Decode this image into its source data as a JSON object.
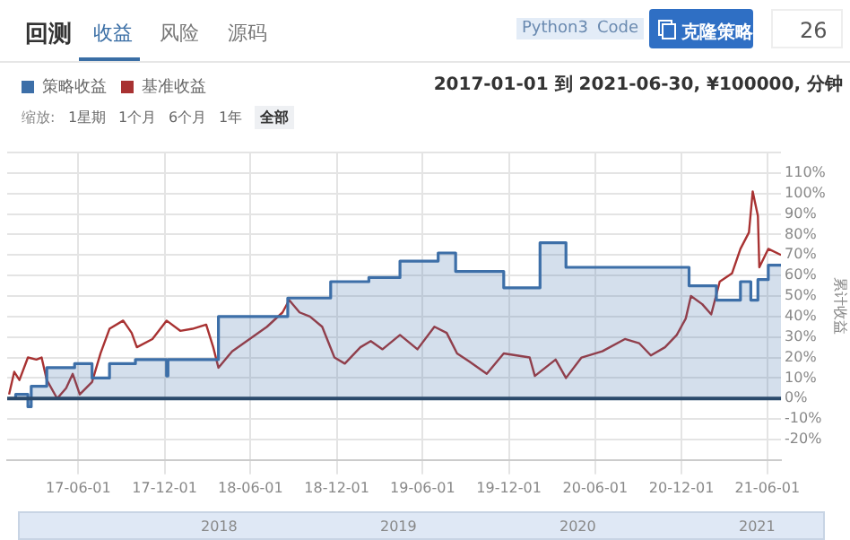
{
  "chart_data": {
    "type": "line",
    "subtitle": "2017-01-01 到 2021-06-30, ¥100000, 分钟",
    "ylabel": "累计收益",
    "legend": "top left",
    "grid": true,
    "xlim": [
      "2017-01-01",
      "2021-06-30"
    ],
    "xticks": [
      {
        "value": "2017-06-01",
        "label": "17-06-01"
      },
      {
        "value": "2017-12-01",
        "label": "17-12-01"
      },
      {
        "value": "2018-06-01",
        "label": "18-06-01"
      },
      {
        "value": "2018-12-01",
        "label": "18-12-01"
      },
      {
        "value": "2019-06-01",
        "label": "19-06-01"
      },
      {
        "value": "2019-12-01",
        "label": "19-12-01"
      },
      {
        "value": "2020-06-01",
        "label": "20-06-01"
      },
      {
        "value": "2020-12-01",
        "label": "20-12-01"
      },
      {
        "value": "2021-06-01",
        "label": "21-06-01"
      }
    ],
    "ylim": [
      -30,
      120
    ],
    "yticks": [
      {
        "value": -30,
        "label": null
      },
      {
        "value": -20,
        "label": "-20%"
      },
      {
        "value": -10,
        "label": "-10%"
      },
      {
        "value": 0,
        "label": "0%"
      },
      {
        "value": 10,
        "label": "10%"
      },
      {
        "value": 20,
        "label": "20%"
      },
      {
        "value": 30,
        "label": "30%"
      },
      {
        "value": 40,
        "label": "40%"
      },
      {
        "value": 50,
        "label": "50%"
      },
      {
        "value": 60,
        "label": "60%"
      },
      {
        "value": 70,
        "label": "70%"
      },
      {
        "value": 80,
        "label": "80%"
      },
      {
        "value": 90,
        "label": "90%"
      },
      {
        "value": 100,
        "label": "100%"
      },
      {
        "value": 110,
        "label": "110%"
      },
      {
        "value": 120,
        "label": null
      }
    ],
    "ref_lines": [
      {
        "axis": "y",
        "value": 0,
        "color": "#2b4a6b"
      }
    ],
    "annotations": [
      "回测",
      "收益",
      "风险",
      "源码",
      "Python3",
      "Code",
      "克隆策略",
      "26",
      "缩放:",
      "1星期",
      "1个月",
      "6个月",
      "1年",
      "全部",
      "2018",
      "2019",
      "2020",
      "2021"
    ],
    "series": [
      {
        "name": "策略收益",
        "type": "step",
        "color": "#3d6fa8",
        "x": [
          "2017-01-05",
          "2017-01-19",
          "2017-02-14",
          "2017-02-21",
          "2017-03-26",
          "2017-05-24",
          "2017-06-30",
          "2017-08-06",
          "2017-09-30",
          "2017-12-05",
          "2017-12-08",
          "2018-03-25",
          "2018-08-19",
          "2018-11-18",
          "2019-02-07",
          "2019-04-14",
          "2019-07-04",
          "2019-08-10",
          "2019-11-20",
          "2020-02-05",
          "2020-03-31",
          "2020-12-17",
          "2021-02-13",
          "2021-04-05",
          "2021-04-27",
          "2021-05-12",
          "2021-06-03",
          "2021-06-30"
        ],
        "values": [
          0,
          2,
          -4,
          6,
          15,
          17,
          10,
          17,
          19,
          11,
          19,
          40,
          49,
          57,
          59,
          67,
          71,
          62,
          54,
          76,
          64,
          55,
          48,
          57,
          48,
          58,
          65,
          65
        ]
      },
      {
        "name": "基准收益",
        "type": "line",
        "color": "#a83232",
        "x": [
          "2017-01-05",
          "2017-01-16",
          "2017-01-27",
          "2017-02-14",
          "2017-03-04",
          "2017-03-15",
          "2017-03-26",
          "2017-04-17",
          "2017-05-06",
          "2017-05-20",
          "2017-06-04",
          "2017-06-30",
          "2017-07-18",
          "2017-08-06",
          "2017-09-04",
          "2017-09-22",
          "2017-10-03",
          "2017-11-05",
          "2017-12-05",
          "2018-01-03",
          "2018-01-29",
          "2018-02-27",
          "2018-03-14",
          "2018-03-25",
          "2018-04-23",
          "2018-05-30",
          "2018-07-06",
          "2018-08-08",
          "2018-08-22",
          "2018-09-13",
          "2018-10-05",
          "2018-10-31",
          "2018-11-26",
          "2018-12-18",
          "2019-01-20",
          "2019-02-11",
          "2019-03-08",
          "2019-04-14",
          "2019-05-21",
          "2019-06-26",
          "2019-07-22",
          "2019-08-13",
          "2019-09-08",
          "2019-10-15",
          "2019-11-20",
          "2020-01-14",
          "2020-01-25",
          "2020-03-09",
          "2020-03-31",
          "2020-05-03",
          "2020-06-16",
          "2020-08-03",
          "2020-09-02",
          "2020-09-27",
          "2020-10-27",
          "2020-11-21",
          "2020-12-10",
          "2020-12-21",
          "2021-01-14",
          "2021-02-02",
          "2021-02-20",
          "2021-03-18",
          "2021-04-05",
          "2021-04-23",
          "2021-05-01",
          "2021-05-12",
          "2021-05-15",
          "2021-06-03",
          "2021-06-30"
        ],
        "values": [
          2,
          13,
          9,
          20,
          19,
          20,
          9,
          0,
          5,
          12,
          2,
          8,
          22,
          34,
          38,
          32,
          25,
          29,
          38,
          33,
          34,
          36,
          25,
          15,
          23,
          29,
          35,
          42,
          48,
          42,
          40,
          35,
          20,
          17,
          25,
          28,
          24,
          31,
          24,
          35,
          32,
          22,
          18,
          12,
          22,
          20,
          11,
          19,
          10,
          20,
          23,
          29,
          27,
          21,
          25,
          31,
          39,
          50,
          46,
          41,
          57,
          61,
          73,
          81,
          101,
          89,
          64,
          73,
          70
        ]
      }
    ]
  }
}
